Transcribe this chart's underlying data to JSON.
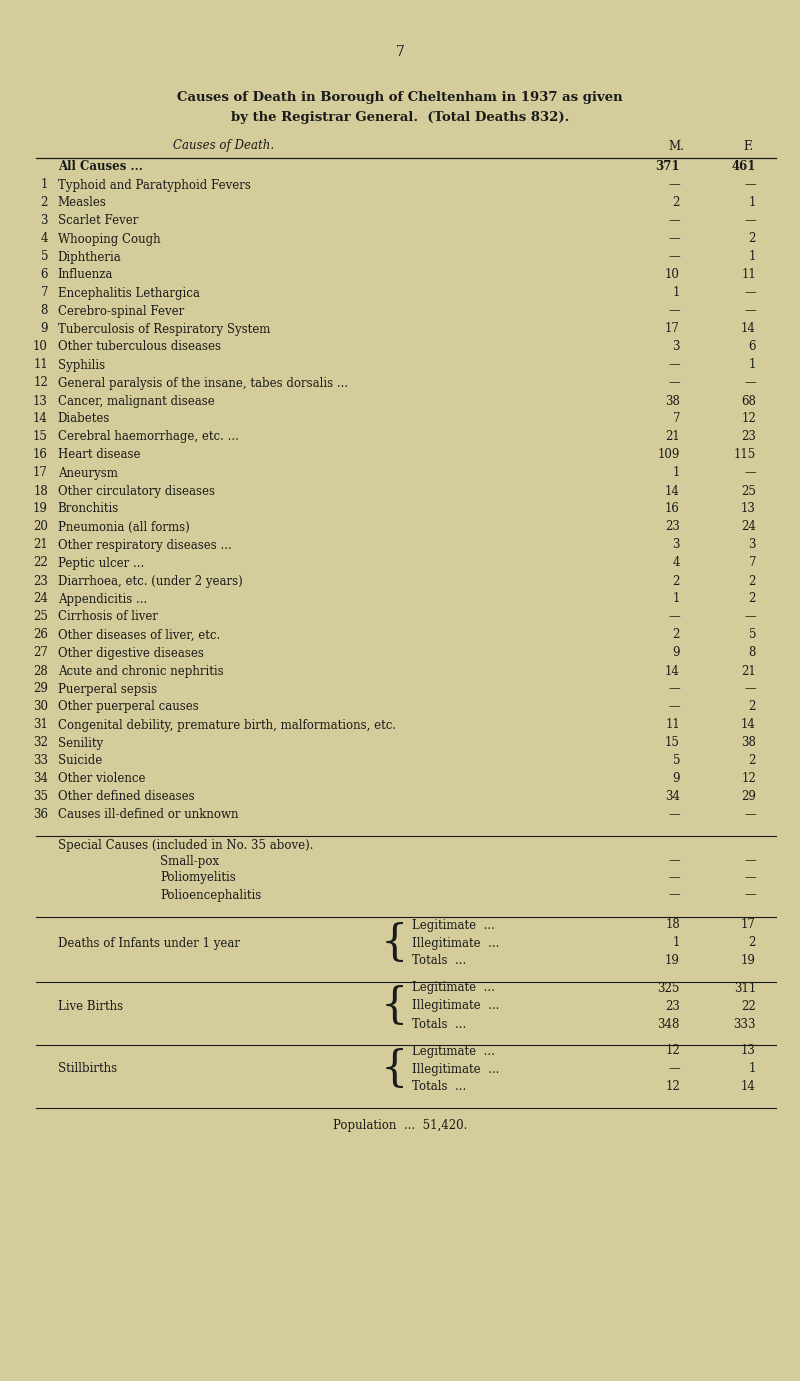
{
  "bg_color": "#d4cc9a",
  "text_color": "#1a1a1a",
  "page_number": "7",
  "title_line1": "Causes of Death in Borough of Cheltenham in 1937 as given",
  "title_line2": "by the Registrar General.  (Total Deaths 832).",
  "col_header_left": "Causes of Death.",
  "col_header_m": "M.",
  "col_header_f": "F.",
  "rows": [
    {
      "num": "",
      "cause": "All Causes ...",
      "m": "371",
      "f": "461",
      "bold": true
    },
    {
      "num": "1",
      "cause": "Typhoid and Paratyphoid Fevers",
      "m": "—",
      "f": "—",
      "bold": false
    },
    {
      "num": "2",
      "cause": "Measles",
      "m": "2",
      "f": "1",
      "bold": false
    },
    {
      "num": "3",
      "cause": "Scarlet Fever",
      "m": "—",
      "f": "—",
      "bold": false
    },
    {
      "num": "4",
      "cause": "Whooping Cough",
      "m": "—",
      "f": "2",
      "bold": false
    },
    {
      "num": "5",
      "cause": "Diphtheria",
      "m": "—",
      "f": "1",
      "bold": false
    },
    {
      "num": "6",
      "cause": "Influenza",
      "m": "10",
      "f": "11",
      "bold": false
    },
    {
      "num": "7",
      "cause": "Encephalitis Lethargica",
      "m": "1",
      "f": "—",
      "bold": false
    },
    {
      "num": "8",
      "cause": "Cerebro-spinal Fever",
      "m": "—",
      "f": "—",
      "bold": false
    },
    {
      "num": "9",
      "cause": "Tuberculosis of Respiratory System",
      "m": "17",
      "f": "14",
      "bold": false
    },
    {
      "num": "10",
      "cause": "Other tuberculous diseases",
      "m": "3",
      "f": "6",
      "bold": false
    },
    {
      "num": "11",
      "cause": "Syphilis",
      "m": "—",
      "f": "1",
      "bold": false
    },
    {
      "num": "12",
      "cause": "General paralysis of the insane, tabes dorsalis ...",
      "m": "—",
      "f": "—",
      "bold": false
    },
    {
      "num": "13",
      "cause": "Cancer, malignant disease",
      "m": "38",
      "f": "68",
      "bold": false
    },
    {
      "num": "14",
      "cause": "Diabetes",
      "m": "7",
      "f": "12",
      "bold": false
    },
    {
      "num": "15",
      "cause": "Cerebral haemorrhage, etc. ...",
      "m": "21",
      "f": "23",
      "bold": false
    },
    {
      "num": "16",
      "cause": "Heart disease",
      "m": "109",
      "f": "115",
      "bold": false
    },
    {
      "num": "17",
      "cause": "Aneurysm",
      "m": "1",
      "f": "—",
      "bold": false
    },
    {
      "num": "18",
      "cause": "Other circulatory diseases",
      "m": "14",
      "f": "25",
      "bold": false
    },
    {
      "num": "19",
      "cause": "Bronchitis",
      "m": "16",
      "f": "13",
      "bold": false
    },
    {
      "num": "20",
      "cause": "Pneumonia (all forms)",
      "m": "23",
      "f": "24",
      "bold": false
    },
    {
      "num": "21",
      "cause": "Other respiratory diseases ...",
      "m": "3",
      "f": "3",
      "bold": false
    },
    {
      "num": "22",
      "cause": "Peptic ulcer ...",
      "m": "4",
      "f": "7",
      "bold": false
    },
    {
      "num": "23",
      "cause": "Diarrhoea, etc. (under 2 years)",
      "m": "2",
      "f": "2",
      "bold": false
    },
    {
      "num": "24",
      "cause": "Appendicitis ...",
      "m": "1",
      "f": "2",
      "bold": false
    },
    {
      "num": "25",
      "cause": "Cirrhosis of liver",
      "m": "—",
      "f": "—",
      "bold": false
    },
    {
      "num": "26",
      "cause": "Other diseases of liver, etc.",
      "m": "2",
      "f": "5",
      "bold": false
    },
    {
      "num": "27",
      "cause": "Other digestive diseases",
      "m": "9",
      "f": "8",
      "bold": false
    },
    {
      "num": "28",
      "cause": "Acute and chronic nephritis",
      "m": "14",
      "f": "21",
      "bold": false
    },
    {
      "num": "29",
      "cause": "Puerperal sepsis",
      "m": "—",
      "f": "—",
      "bold": false
    },
    {
      "num": "30",
      "cause": "Other puerperal causes",
      "m": "—",
      "f": "2",
      "bold": false
    },
    {
      "num": "31",
      "cause": "Congenital debility, premature birth, malformations, etc.",
      "m": "11",
      "f": "14",
      "bold": false
    },
    {
      "num": "32",
      "cause": "Senility",
      "m": "15",
      "f": "38",
      "bold": false
    },
    {
      "num": "33",
      "cause": "Suicide",
      "m": "5",
      "f": "2",
      "bold": false
    },
    {
      "num": "34",
      "cause": "Other violence",
      "m": "9",
      "f": "12",
      "bold": false
    },
    {
      "num": "35",
      "cause": "Other defined diseases",
      "m": "34",
      "f": "29",
      "bold": false
    },
    {
      "num": "36",
      "cause": "Causes ill-defined or unknown",
      "m": "—",
      "f": "—",
      "bold": false
    }
  ],
  "special_causes_header": "Special Causes (included in No. 35 above).",
  "special_causes": [
    {
      "cause": "Small-pox",
      "m": "—",
      "f": "—"
    },
    {
      "cause": "Poliomyelitis",
      "m": "—",
      "f": "—"
    },
    {
      "cause": "Polioencephalitis",
      "m": "—",
      "f": "—"
    }
  ],
  "infant_deaths": {
    "label": "Deaths of Infants under 1 year",
    "legitimate_m": "18",
    "legitimate_f": "17",
    "illegitimate_m": "1",
    "illegitimate_f": "2",
    "totals_m": "19",
    "totals_f": "19"
  },
  "live_births": {
    "label": "Live Births",
    "legitimate_m": "325",
    "legitimate_f": "311",
    "illegitimate_m": "23",
    "illegitimate_f": "22",
    "totals_m": "348",
    "totals_f": "333"
  },
  "stillbirths": {
    "label": "Stillbirths",
    "legitimate_m": "12",
    "legitimate_f": "13",
    "illegitimate_m": "—",
    "illegitimate_f": "1",
    "totals_m": "12",
    "totals_f": "14"
  },
  "population": "Population  ...  51,420."
}
